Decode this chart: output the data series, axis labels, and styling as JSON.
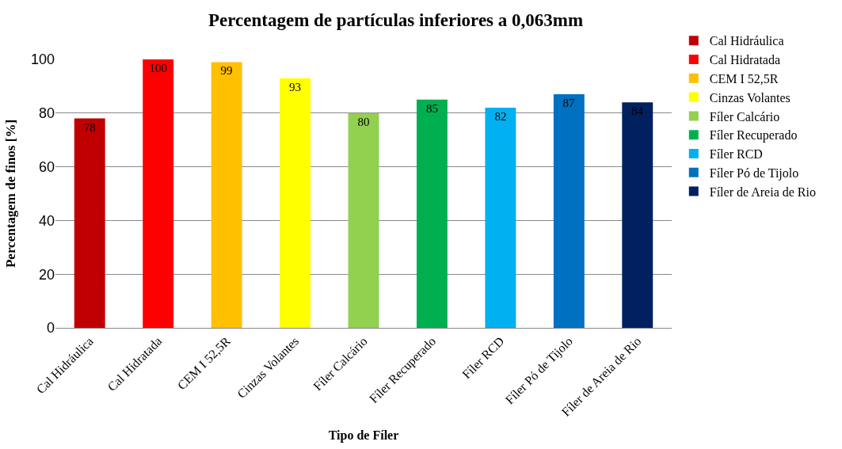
{
  "chart_data": {
    "type": "bar",
    "title": "Percentagem de partículas inferiores a 0,063mm",
    "xlabel": "Tipo de Fíler",
    "ylabel": "Percentagem de finos [%]",
    "categories": [
      "Cal Hidráulica",
      "Cal Hidratada",
      "CEM I 52,5R",
      "Cinzas Volantes",
      "Fíler Calcário",
      "Fíler Recuperado",
      "Fíler RCD",
      "Fíler Pó de Tijolo",
      "Fíler de Areia de Rio"
    ],
    "series": [
      {
        "name": "Cal Hidráulica",
        "color": "#c00000",
        "values": [
          78,
          null,
          null,
          null,
          null,
          null,
          null,
          null,
          null
        ]
      },
      {
        "name": "Cal Hidratada",
        "color": "#ff0000",
        "values": [
          null,
          100,
          null,
          null,
          null,
          null,
          null,
          null,
          null
        ]
      },
      {
        "name": "CEM I 52,5R",
        "color": "#ffc000",
        "values": [
          null,
          null,
          99,
          null,
          null,
          null,
          null,
          null,
          null
        ]
      },
      {
        "name": "Cinzas Volantes",
        "color": "#ffff00",
        "values": [
          null,
          null,
          null,
          93,
          null,
          null,
          null,
          null,
          null
        ]
      },
      {
        "name": "Fíler Calcário",
        "color": "#92d050",
        "values": [
          null,
          null,
          null,
          null,
          80,
          null,
          null,
          null,
          null
        ]
      },
      {
        "name": "Fíler Recuperado",
        "color": "#00b050",
        "values": [
          null,
          null,
          null,
          null,
          null,
          85,
          null,
          null,
          null
        ]
      },
      {
        "name": "Fíler RCD",
        "color": "#00b0f0",
        "values": [
          null,
          null,
          null,
          null,
          null,
          null,
          82,
          null,
          null
        ]
      },
      {
        "name": "Fíler Pó de Tijolo",
        "color": "#0070c0",
        "values": [
          null,
          null,
          null,
          null,
          null,
          null,
          null,
          87,
          null
        ]
      },
      {
        "name": "Fíler de Areia de Rio",
        "color": "#002060",
        "values": [
          null,
          null,
          null,
          null,
          null,
          null,
          null,
          null,
          84
        ]
      }
    ],
    "ylim": [
      0,
      100
    ],
    "yticks": [
      0,
      20,
      40,
      60,
      80,
      100
    ],
    "grid": "y",
    "legend": "right",
    "data_labels": true
  }
}
